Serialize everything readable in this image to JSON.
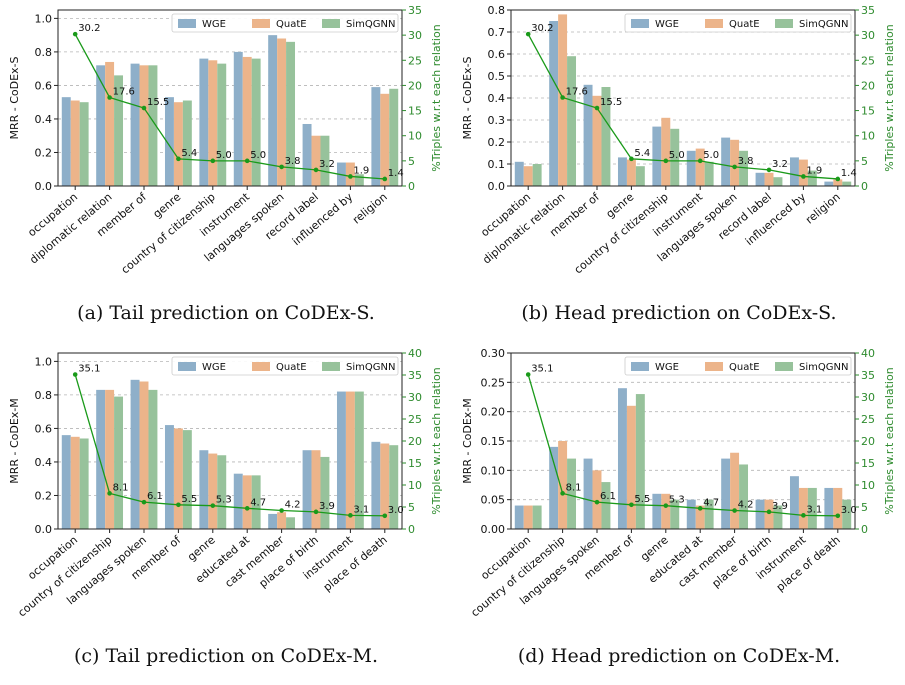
{
  "colors": {
    "wge": "#8eafc9",
    "quate": "#ecb48a",
    "simqgnn": "#97c29b",
    "line": "#1a9a1a",
    "rightAxis": "#2e8b2e"
  },
  "chart_data": [
    {
      "type": "bar",
      "caption": "(a) Tail prediction on CoDEx-S.",
      "ylabel": "MRR - CoDEx-S",
      "y2label": "%Triples w.r.t each relation",
      "ylim": [
        0,
        1.05
      ],
      "yticks": [
        "0.0",
        "0.2",
        "0.4",
        "0.6",
        "0.8",
        "1.0"
      ],
      "y2lim": [
        0,
        35
      ],
      "y2ticks": [
        "0",
        "5",
        "10",
        "15",
        "20",
        "25",
        "30",
        "35"
      ],
      "categories": [
        "occupation",
        "diplomatic relation",
        "member of",
        "genre",
        "country of citizenship",
        "instrument",
        "languages spoken",
        "record label",
        "influenced by",
        "religion"
      ],
      "series": [
        {
          "name": "WGE",
          "values": [
            0.53,
            0.72,
            0.73,
            0.53,
            0.76,
            0.8,
            0.9,
            0.37,
            0.14,
            0.59
          ]
        },
        {
          "name": "QuatE",
          "values": [
            0.51,
            0.74,
            0.72,
            0.5,
            0.75,
            0.77,
            0.88,
            0.3,
            0.14,
            0.55
          ]
        },
        {
          "name": "SimQGNN",
          "values": [
            0.5,
            0.66,
            0.72,
            0.51,
            0.73,
            0.76,
            0.86,
            0.3,
            0.07,
            0.58
          ]
        }
      ],
      "line": {
        "values": [
          30.2,
          17.6,
          15.5,
          5.4,
          5.0,
          5.0,
          3.8,
          3.2,
          1.9,
          1.4
        ],
        "labels": [
          "30.2",
          "17.6",
          "15.5",
          "5.4",
          "5.0",
          "5.0",
          "3.8",
          "3.2",
          "1.9",
          "1.4"
        ]
      }
    },
    {
      "type": "bar",
      "caption": "(b) Head prediction on CoDEx-S.",
      "ylabel": "MRR - CoDEx-S",
      "y2label": "%Triples w.r.t each relation",
      "ylim": [
        0,
        0.8
      ],
      "yticks": [
        "0.0",
        "0.1",
        "0.2",
        "0.3",
        "0.4",
        "0.5",
        "0.6",
        "0.7",
        "0.8"
      ],
      "y2lim": [
        0,
        35
      ],
      "y2ticks": [
        "0",
        "5",
        "10",
        "15",
        "20",
        "25",
        "30",
        "35"
      ],
      "categories": [
        "occupation",
        "diplomatic relation",
        "member of",
        "genre",
        "country of citizenship",
        "instrument",
        "languages spoken",
        "record label",
        "influenced by",
        "religion"
      ],
      "series": [
        {
          "name": "WGE",
          "values": [
            0.11,
            0.75,
            0.46,
            0.13,
            0.27,
            0.16,
            0.22,
            0.06,
            0.13,
            0.02
          ]
        },
        {
          "name": "QuatE",
          "values": [
            0.09,
            0.78,
            0.41,
            0.12,
            0.31,
            0.17,
            0.21,
            0.06,
            0.12,
            0.03
          ]
        },
        {
          "name": "SimQGNN",
          "values": [
            0.1,
            0.59,
            0.45,
            0.09,
            0.26,
            0.11,
            0.16,
            0.04,
            0.07,
            0.02
          ]
        }
      ],
      "line": {
        "values": [
          30.2,
          17.6,
          15.5,
          5.4,
          5.0,
          5.0,
          3.8,
          3.2,
          1.9,
          1.4
        ],
        "labels": [
          "30.2",
          "17.6",
          "15.5",
          "5.4",
          "5.0",
          "5.0",
          "3.8",
          "3.2",
          "1.9",
          "1.4"
        ]
      }
    },
    {
      "type": "bar",
      "caption": "(c) Tail prediction on CoDEx-M.",
      "ylabel": "MRR - CoDEx-M",
      "y2label": "%Triples w.r.t each relation",
      "ylim": [
        0,
        1.05
      ],
      "yticks": [
        "0.0",
        "0.2",
        "0.4",
        "0.6",
        "0.8",
        "1.0"
      ],
      "y2lim": [
        0,
        40
      ],
      "y2ticks": [
        "0",
        "5",
        "10",
        "15",
        "20",
        "25",
        "30",
        "35",
        "40"
      ],
      "categories": [
        "occupation",
        "country of citizenship",
        "languages spoken",
        "member of",
        "genre",
        "educated at",
        "cast member",
        "place of birth",
        "instrument",
        "place of death"
      ],
      "series": [
        {
          "name": "WGE",
          "values": [
            0.56,
            0.83,
            0.89,
            0.62,
            0.47,
            0.33,
            0.09,
            0.47,
            0.82,
            0.52
          ]
        },
        {
          "name": "QuatE",
          "values": [
            0.55,
            0.83,
            0.88,
            0.6,
            0.45,
            0.32,
            0.1,
            0.47,
            0.82,
            0.51
          ]
        },
        {
          "name": "SimQGNN",
          "values": [
            0.54,
            0.79,
            0.83,
            0.59,
            0.44,
            0.32,
            0.07,
            0.43,
            0.82,
            0.5
          ]
        }
      ],
      "line": {
        "values": [
          35.1,
          8.1,
          6.1,
          5.5,
          5.3,
          4.7,
          4.2,
          3.9,
          3.1,
          3.0
        ],
        "labels": [
          "35.1",
          "8.1",
          "6.1",
          "5.5",
          "5.3",
          "4.7",
          "4.2",
          "3.9",
          "3.1",
          "3.0"
        ]
      }
    },
    {
      "type": "bar",
      "caption": "(d) Head prediction on CoDEx-M.",
      "ylabel": "MRR - CoDEx-M",
      "y2label": "%Triples w.r.t each relation",
      "ylim": [
        0,
        0.3
      ],
      "yticks": [
        "0.00",
        "0.05",
        "0.10",
        "0.15",
        "0.20",
        "0.25",
        "0.30"
      ],
      "y2lim": [
        0,
        40
      ],
      "y2ticks": [
        "0",
        "5",
        "10",
        "15",
        "20",
        "25",
        "30",
        "35",
        "40"
      ],
      "categories": [
        "occupation",
        "country of citizenship",
        "languages spoken",
        "member of",
        "genre",
        "educated at",
        "cast member",
        "place of birth",
        "instrument",
        "place of death"
      ],
      "series": [
        {
          "name": "WGE",
          "values": [
            0.04,
            0.14,
            0.12,
            0.24,
            0.06,
            0.05,
            0.12,
            0.05,
            0.09,
            0.07
          ]
        },
        {
          "name": "QuatE",
          "values": [
            0.04,
            0.15,
            0.1,
            0.21,
            0.06,
            0.04,
            0.13,
            0.05,
            0.07,
            0.07
          ]
        },
        {
          "name": "SimQGNN",
          "values": [
            0.04,
            0.12,
            0.08,
            0.23,
            0.05,
            0.05,
            0.11,
            0.04,
            0.07,
            0.05
          ]
        }
      ],
      "line": {
        "values": [
          35.1,
          8.1,
          6.1,
          5.5,
          5.3,
          4.7,
          4.2,
          3.9,
          3.1,
          3.0
        ],
        "labels": [
          "35.1",
          "8.1",
          "6.1",
          "5.5",
          "5.3",
          "4.7",
          "4.2",
          "3.9",
          "3.1",
          "3.0"
        ]
      }
    }
  ]
}
